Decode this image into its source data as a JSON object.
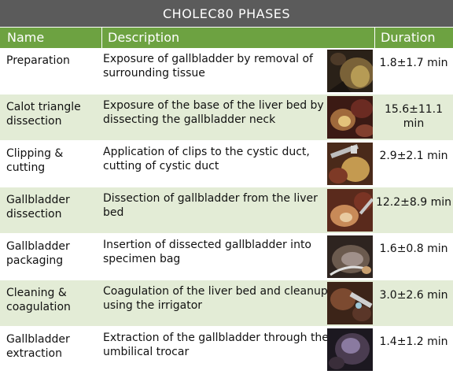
{
  "title": "CHOLEC80 PHASES",
  "headers": {
    "name": "Name",
    "description": "Description",
    "duration": "Duration"
  },
  "phases": [
    {
      "name": "Preparation",
      "description": "Exposure of gallbladder by removal of surrounding tissue",
      "duration": "1.8±1.7 min"
    },
    {
      "name": "Calot triangle dissection",
      "description": "Exposure of the base of the liver bed by dissecting the gallbladder neck",
      "duration": "15.6±11.1 min"
    },
    {
      "name": "Clipping & cutting",
      "description": "Application of clips to the cystic duct, cutting of cystic duct",
      "duration": "2.9±2.1 min"
    },
    {
      "name": "Gallbladder dissection",
      "description": "Dissection of gallbladder from the liver bed",
      "duration": "12.2±8.9 min"
    },
    {
      "name": "Gallbladder packaging",
      "description": "Insertion of dissected gallbladder into specimen bag",
      "duration": "1.6±0.8 min"
    },
    {
      "name": "Cleaning & coagulation",
      "description": "Coagulation of the liver bed and cleanup using the irrigator",
      "duration": "3.0±2.6 min"
    },
    {
      "name": "Gallbladder extraction",
      "description": "Extraction of the gallbladder through the umbilical trocar",
      "duration": "1.4±1.2 min"
    }
  ],
  "colors": {
    "title_bg": "#5b5b5b",
    "header_bg": "#6da241",
    "row_alt_bg": "#e3ecd6"
  }
}
